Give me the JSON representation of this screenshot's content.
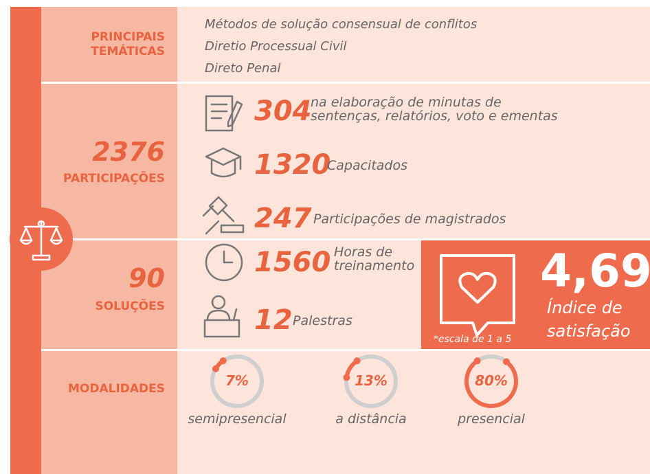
{
  "themes": {
    "label": "PRINCIPAIS TEMÁTICAS",
    "items": [
      "Métodos de solução consensual de conflitos",
      "Diretio Processual Civil",
      "Direto Penal"
    ]
  },
  "participations": {
    "total": "2376",
    "label": "PARTICIPAÇÕES",
    "items": [
      {
        "number": "304",
        "text": "na elaboração de minutas de sentenças, relatórios, voto e ementas"
      },
      {
        "number": "1320",
        "text": "Capacitados"
      },
      {
        "number": "247",
        "text": "Participações de magistrados"
      }
    ]
  },
  "solutions": {
    "total": "90",
    "label": "SOLUÇÕES",
    "items": [
      {
        "number": "1560",
        "text": "Horas de treinamento"
      },
      {
        "number": "12",
        "text": "Palestras"
      }
    ]
  },
  "satisfaction": {
    "score": "4,69",
    "label": "Índice de satisfação",
    "note": "*escala de 1 a 5"
  },
  "modalities": {
    "label": "MODALIDADES",
    "items": [
      {
        "value": 7,
        "value_label": "7%",
        "name": "semipresencial"
      },
      {
        "value": 13,
        "value_label": "13%",
        "name": "a distância"
      },
      {
        "value": 80,
        "value_label": "80%",
        "name": "presencial"
      }
    ]
  }
}
